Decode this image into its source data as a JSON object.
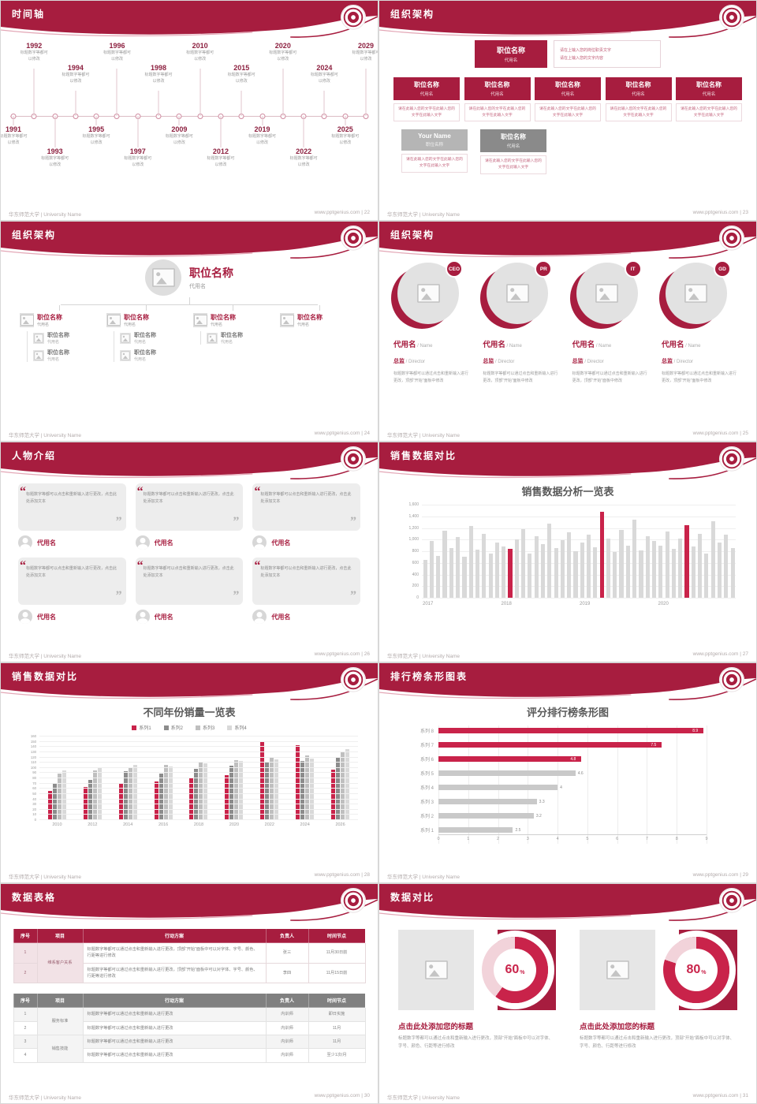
{
  "common": {
    "university_footer": "华东师范大学 | University Name",
    "site": "www.pptgenius.com",
    "sep": " | ",
    "colors": {
      "primary": "#A71D3F",
      "accent": "#C9234A",
      "bar_gray": "#D9D9D9"
    }
  },
  "slides": {
    "timeline": {
      "title": "时间轴",
      "page": "22",
      "caption": "标题数字等都可\n以修改",
      "items": [
        {
          "year": "1991",
          "pos": "b1"
        },
        {
          "year": "1992",
          "pos": "t1"
        },
        {
          "year": "1993",
          "pos": "b2"
        },
        {
          "year": "1994",
          "pos": "t2"
        },
        {
          "year": "1995",
          "pos": "b1"
        },
        {
          "year": "1996",
          "pos": "t1"
        },
        {
          "year": "1997",
          "pos": "b2"
        },
        {
          "year": "1998",
          "pos": "t2"
        },
        {
          "year": "2009",
          "pos": "b1"
        },
        {
          "year": "2010",
          "pos": "t1"
        },
        {
          "year": "2012",
          "pos": "b2"
        },
        {
          "year": "2015",
          "pos": "t2"
        },
        {
          "year": "2019",
          "pos": "b1"
        },
        {
          "year": "2020",
          "pos": "t1"
        },
        {
          "year": "2022",
          "pos": "b2"
        },
        {
          "year": "2024",
          "pos": "t2"
        },
        {
          "year": "2025",
          "pos": "b1"
        },
        {
          "year": "2029",
          "pos": "t1"
        }
      ]
    },
    "org1": {
      "title": "组织架构",
      "page": "23",
      "top": {
        "title": "职位名称",
        "sub": "代用名",
        "note_lines": [
          "请在上输入您的岗位职责文字",
          "请在上输入您的文字内容"
        ]
      },
      "boxes": [
        {
          "title": "职位名称",
          "sub": "代用名",
          "desc": "请在此输入您的文字在此输入您的文字在此输入文字"
        },
        {
          "title": "职位名称",
          "sub": "代用名",
          "desc": "请在此输入您的文字在此输入您的文字在此输入文字"
        },
        {
          "title": "职位名称",
          "sub": "代用名",
          "desc": "请在此输入您的文字在此输入您的文字在此输入文字"
        },
        {
          "title": "职位名称",
          "sub": "代用名",
          "desc": "请在此输入您的文字在此输入您的文字在此输入文字"
        },
        {
          "title": "职位名称",
          "sub": "代用名",
          "desc": "请在此输入您的文字在此输入您的文字在此输入文字"
        }
      ],
      "bottom": [
        {
          "title": "Your Name",
          "sub": "职位名称",
          "style": "light",
          "desc": "请在此输入您的文字在此输入您的文字在此输入文字"
        },
        {
          "title": "职位名称",
          "sub": "代用名",
          "style": "dark",
          "desc": "请在此输入您的文字在此输入您的文字在此输入文字"
        }
      ]
    },
    "org2": {
      "title": "组织架构",
      "page": "24",
      "root": {
        "title": "职位名称",
        "sub": "代用名"
      },
      "cols": [
        {
          "title": "职位名称",
          "sub": "代用名",
          "children": [
            {
              "title": "职位名称",
              "sub": "代用名"
            },
            {
              "title": "职位名称",
              "sub": "代用名"
            }
          ]
        },
        {
          "title": "职位名称",
          "sub": "代用名",
          "children": [
            {
              "title": "职位名称",
              "sub": "代用名"
            },
            {
              "title": "职位名称",
              "sub": "代用名"
            }
          ]
        },
        {
          "title": "职位名称",
          "sub": "代用名",
          "children": [
            {
              "title": "职位名称",
              "sub": "代用名"
            }
          ]
        },
        {
          "title": "职位名称",
          "sub": "代用名",
          "children": []
        }
      ]
    },
    "org3": {
      "title": "组织架构",
      "page": "25",
      "members": [
        {
          "badge": "CEO",
          "name": "代用名",
          "name_en": "/ Name",
          "role": "总监",
          "role_en": "/ Director",
          "desc": "标题数字等都可以通过点击和重新输入进行更改，顶部“开始”面板中修改"
        },
        {
          "badge": "PR",
          "name": "代用名",
          "name_en": "/ Name",
          "role": "总监",
          "role_en": "/ Director",
          "desc": "标题数字等都可以通过点击和重新输入进行更改，顶部“开始”面板中修改"
        },
        {
          "badge": "IT",
          "name": "代用名",
          "name_en": "/ Name",
          "role": "总监",
          "role_en": "/ Director",
          "desc": "标题数字等都可以通过点击和重新输入进行更改，顶部“开始”面板中修改"
        },
        {
          "badge": "GD",
          "name": "代用名",
          "name_en": "/ Name",
          "role": "总监",
          "role_en": "/ Director",
          "desc": "标题数字等都可以通过点击和重新输入进行更改，顶部“开始”面板中修改"
        }
      ]
    },
    "people": {
      "title": "人物介绍",
      "page": "26",
      "quote_open": "“",
      "quote_close": "”",
      "cards": [
        {
          "quote": "标题数字等都可以点击和重新输入进行更改，点击此处添加文本",
          "name": "代用名"
        },
        {
          "quote": "标题数字等都可以点击和重新输入进行更改，点击此处添加文本",
          "name": "代用名"
        },
        {
          "quote": "标题数字等都可以点击和重新输入进行更改，点击此处添加文本",
          "name": "代用名"
        },
        {
          "quote": "标题数字等都可以点击和重新输入进行更改，点击此处添加文本",
          "name": "代用名"
        },
        {
          "quote": "标题数字等都可以点击和重新输入进行更改，点击此处添加文本",
          "name": "代用名"
        },
        {
          "quote": "标题数字等都可以点击和重新输入进行更改，点击此处添加文本",
          "name": "代用名"
        }
      ]
    },
    "sales1": {
      "title": "销售数据对比",
      "page": "27",
      "chart": {
        "type": "bar",
        "chart_title": "销售数据分析一览表",
        "x_labels": [
          "2017",
          "2018",
          "2019",
          "2020"
        ],
        "y_ticks": [
          "1,600",
          "1,400",
          "1,200",
          "1,000",
          "800",
          "600",
          "400",
          "200",
          "0"
        ],
        "ymax": 1600,
        "values": [
          650,
          980,
          720,
          1150,
          860,
          1040,
          700,
          1230,
          830,
          1100,
          760,
          950,
          880,
          840,
          1000,
          1180,
          760,
          1060,
          920,
          1280,
          850,
          990,
          1120,
          800,
          950,
          1090,
          870,
          1480,
          1020,
          780,
          1170,
          900,
          1340,
          820,
          1060,
          980,
          900,
          1140,
          840,
          1020,
          1250,
          880,
          1100,
          760,
          1310,
          950,
          1080,
          860
        ],
        "red_indices": [
          13,
          27,
          40
        ]
      }
    },
    "sales2": {
      "title": "销售数据对比",
      "page": "28",
      "chart": {
        "type": "grouped-bar",
        "chart_title": "不同年份销量一览表",
        "categories": [
          "2010",
          "2012",
          "2014",
          "2016",
          "2018",
          "2020",
          "2022",
          "2024",
          "2026"
        ],
        "ymax": 160,
        "y_ticks": [
          "160",
          "150",
          "140",
          "130",
          "120",
          "110",
          "100",
          "90",
          "80",
          "70",
          "60",
          "50",
          "40",
          "30",
          "20",
          "10",
          "0"
        ],
        "series": [
          {
            "name": "系列1",
            "color": "#C9234A",
            "values": [
              55,
              62,
              68,
              72,
              78,
              85,
              150,
              142,
              95
            ]
          },
          {
            "name": "系列2",
            "color": "#8C8C8C",
            "values": [
              70,
              76,
              92,
              88,
              96,
              102,
              108,
              112,
              118
            ]
          },
          {
            "name": "系列3",
            "color": "#BFBFBF",
            "values": [
              88,
              94,
              99,
              104,
              108,
              113,
              118,
              123,
              128
            ]
          },
          {
            "name": "系列4",
            "color": "#D9D9D9",
            "values": [
              94,
              99,
              104,
              101,
              107,
              111,
              114,
              117,
              135
            ]
          }
        ]
      }
    },
    "ranking": {
      "title": "排行榜条形图表",
      "page": "29",
      "chart": {
        "type": "hbar",
        "chart_title": "评分排行榜条形图",
        "categories": [
          "系列 8",
          "系列 7",
          "系列 6",
          "系列 5",
          "系列 4",
          "系列 3",
          "系列 2",
          "系列 1"
        ],
        "values": [
          8.9,
          7.5,
          4.8,
          4.6,
          4,
          3.3,
          3.2,
          2.5
        ],
        "value_labels": [
          "8.9",
          "7.5",
          "4.8",
          "4.6",
          "4",
          "3.3",
          "3.2",
          "2.5"
        ],
        "highlight": [
          true,
          true,
          true,
          false,
          false,
          false,
          false,
          false
        ],
        "xmax": 9,
        "x_ticks": [
          "0",
          "1",
          "2",
          "3",
          "4",
          "5",
          "6",
          "7",
          "8",
          "9"
        ]
      }
    },
    "tables": {
      "title": "数据表格",
      "page": "30",
      "table1": {
        "headers": [
          "序号",
          "项目",
          "行动方案",
          "负责人",
          "时间节点"
        ],
        "merged_project": "维系客户关系",
        "rows": [
          {
            "no": "1",
            "plan": "标题数字等都可以通过点击和重新输入进行更改，顶部“开始”面板中可以对字体、字号、颜色、行距等进行修改",
            "owner": "张三",
            "deadline": "11月30日前"
          },
          {
            "no": "2",
            "plan": "标题数字等都可以通过点击和重新输入进行更改，顶部“开始”面板中可以对字体、字号、颜色、行距等进行修改",
            "owner": "李四",
            "deadline": "11月15日前"
          }
        ]
      },
      "table2": {
        "headers": [
          "序号",
          "项目",
          "行动方案",
          "负责人",
          "时间节点"
        ],
        "groups": [
          {
            "project": "服务标准",
            "rows": [
              {
                "no": "1",
                "plan": "标题数字等都可以通过点击和重新输入进行更改",
                "owner": "内训师",
                "deadline": "即日实施"
              },
              {
                "no": "2",
                "plan": "标题数字等都可以通过点击和重新输入进行更改",
                "owner": "内训师",
                "deadline": "11月"
              }
            ]
          },
          {
            "project": "销售技能",
            "rows": [
              {
                "no": "3",
                "plan": "标题数字等都可以通过点击和重新输入进行更改",
                "owner": "内训师",
                "deadline": "11月"
              },
              {
                "no": "4",
                "plan": "标题数字等都可以通过点击和重新输入进行更改",
                "owner": "内训师",
                "deadline": "至少1次/月"
              }
            ]
          }
        ]
      }
    },
    "compare": {
      "title": "数据对比",
      "page": "31",
      "percent_sign": "%",
      "panels": [
        {
          "percent": "60",
          "title": "点击此处添加您的标题",
          "desc": "标题数字等都可以通过点击和重新输入进行更改，顶部“开始”面板中可以对字体、字号、颜色、行距等进行修改"
        },
        {
          "percent": "80",
          "title": "点击此处添加您的标题",
          "desc": "标题数字等都可以通过点击和重新输入进行更改，顶部“开始”面板中可以对字体、字号、颜色、行距等进行修改"
        }
      ]
    }
  }
}
